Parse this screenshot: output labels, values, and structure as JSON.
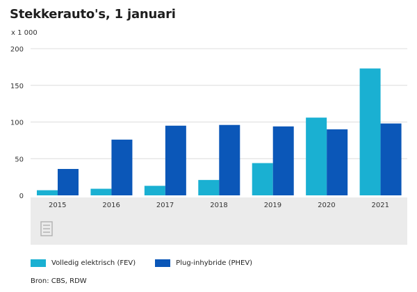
{
  "title": "Stekkerauto's, 1 januari",
  "unit_label": "x 1 000",
  "source": "Bron: CBS, RDW",
  "colors": {
    "fev": "#1ab0d2",
    "phev": "#0b57b8",
    "grid": "#dcdcdc",
    "axis_panel": "#ebebeb"
  },
  "chart_data": {
    "type": "bar",
    "categories": [
      "2015",
      "2016",
      "2017",
      "2018",
      "2019",
      "2020",
      "2021"
    ],
    "series": [
      {
        "name": "Volledig elektrisch (FEV)",
        "values": [
          7,
          9,
          13,
          21,
          44,
          106,
          173
        ]
      },
      {
        "name": "Plug-inhybride (PHEV)",
        "values": [
          36,
          76,
          95,
          96,
          94,
          90,
          98
        ]
      }
    ],
    "y_ticks": [
      0,
      50,
      100,
      150,
      200
    ],
    "ylim": [
      0,
      200
    ],
    "grid": true,
    "legend_position": "bottom"
  }
}
